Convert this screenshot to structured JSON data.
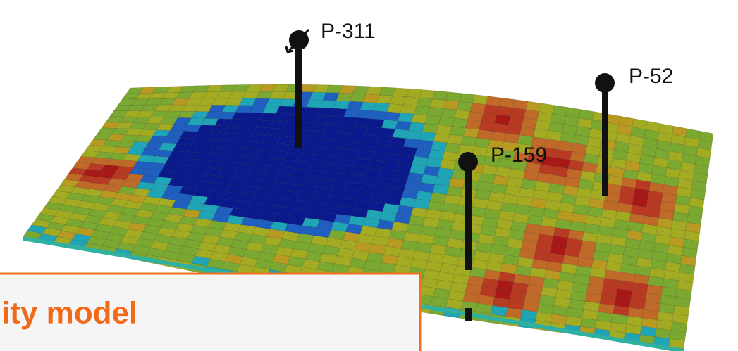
{
  "wells": [
    {
      "label": "P-311"
    },
    {
      "label": "P-52"
    },
    {
      "label": "P-159"
    }
  ],
  "caption": "ity model"
}
